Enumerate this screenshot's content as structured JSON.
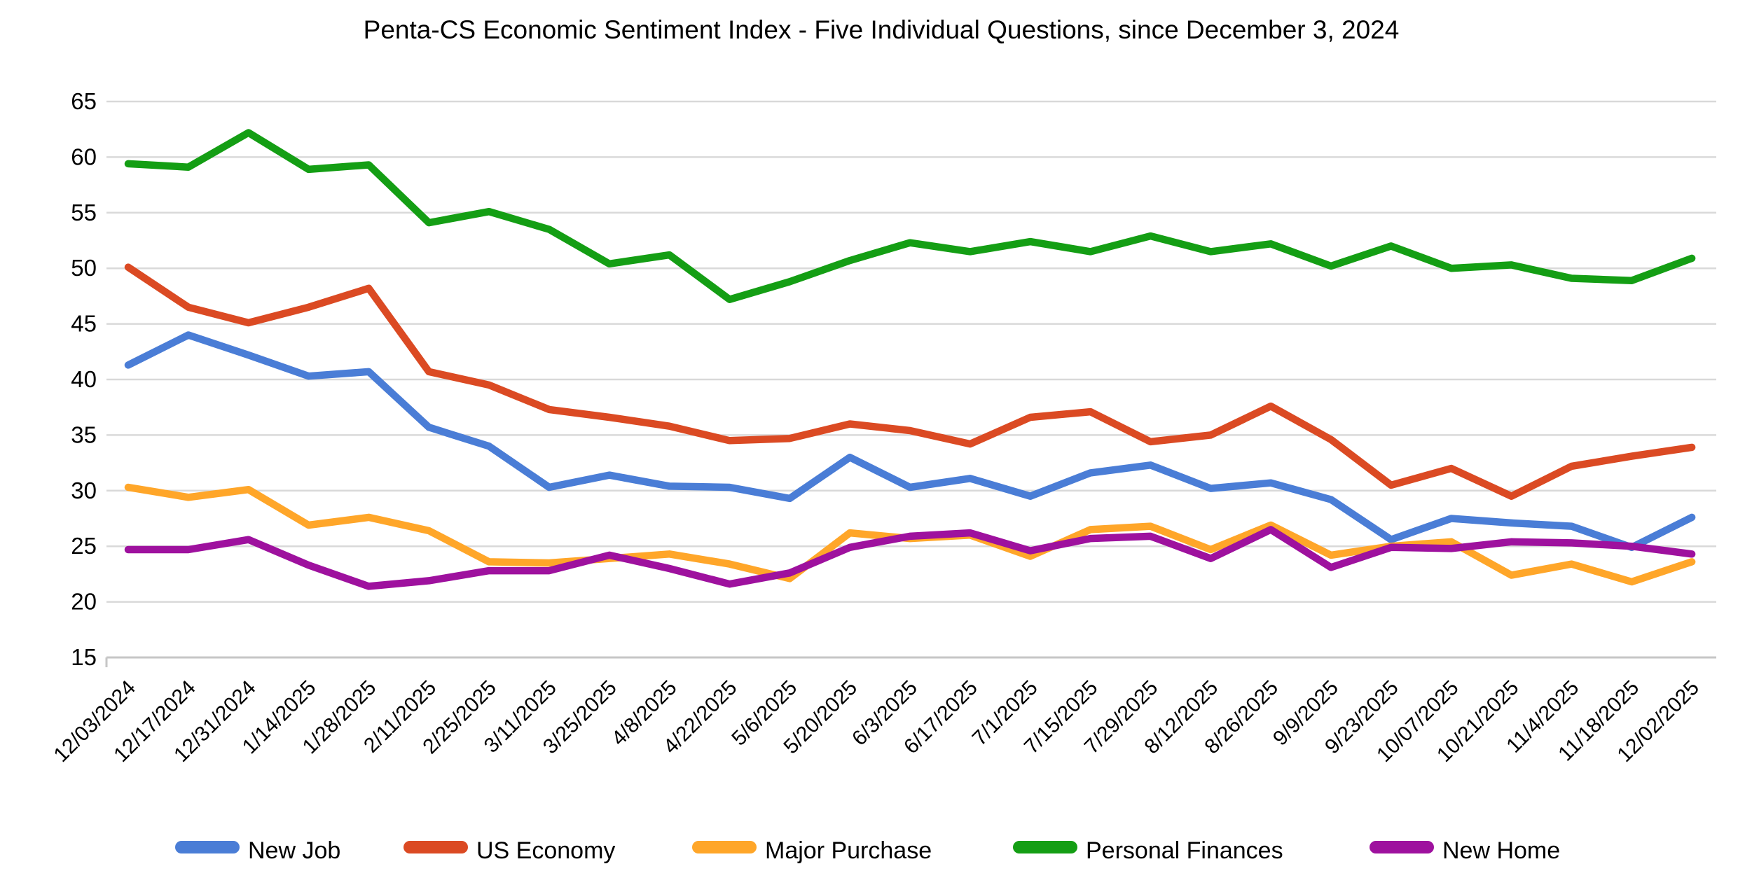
{
  "title": "Penta-CS Economic Sentiment Index - Five Individual Questions, since December 3, 2024",
  "chart_data": {
    "type": "line",
    "title": "Penta-CS Economic Sentiment Index - Five Individual Questions, since December 3, 2024",
    "xlabel": "",
    "ylabel": "",
    "grid": true,
    "legend_position": "bottom",
    "y_axis": {
      "min": 15,
      "max": 65,
      "step": 5
    },
    "x_tick_labels": [
      "12/03/2024",
      "12/17/2024",
      "12/31/2024",
      "1/14/2025",
      "1/28/2025",
      "2/11/2025",
      "2/25/2025",
      "3/11/2025",
      "3/25/2025",
      "4/8/2025",
      "4/22/2025",
      "5/6/2025",
      "5/20/2025",
      "6/3/2025",
      "6/17/2025",
      "7/1/2025",
      "7/15/2025",
      "7/29/2025",
      "8/12/2025",
      "8/26/2025",
      "9/9/2025",
      "9/23/2025",
      "10/07/2025",
      "10/21/2025",
      "11/4/2025",
      "11/18/2025",
      "12/02/2025"
    ],
    "series": [
      {
        "name": "New Job",
        "color": "#4A7DD6",
        "values": [
          41.3,
          44.0,
          42.2,
          40.3,
          40.7,
          35.7,
          34.0,
          30.3,
          31.4,
          30.4,
          30.3,
          29.3,
          33.0,
          30.3,
          31.1,
          29.5,
          31.6,
          32.3,
          30.2,
          30.7,
          29.2,
          25.6,
          27.5,
          27.1,
          26.8,
          24.9,
          27.6
        ]
      },
      {
        "name": "US Economy",
        "color": "#DB4A23",
        "values": [
          50.1,
          46.5,
          45.1,
          46.5,
          48.2,
          40.7,
          39.5,
          37.3,
          36.6,
          35.8,
          34.5,
          34.7,
          36.0,
          35.4,
          34.2,
          36.6,
          37.1,
          34.4,
          35.0,
          37.6,
          34.6,
          30.5,
          32.0,
          29.5,
          32.2,
          33.1,
          33.9
        ]
      },
      {
        "name": "Major Purchase",
        "color": "#FFA629",
        "values": [
          30.3,
          29.4,
          30.1,
          26.9,
          27.6,
          26.4,
          23.6,
          23.5,
          23.9,
          24.3,
          23.4,
          22.1,
          26.2,
          25.7,
          26.0,
          24.1,
          26.5,
          26.8,
          24.7,
          26.9,
          24.2,
          25.0,
          25.4,
          22.4,
          23.4,
          21.8,
          23.6
        ]
      },
      {
        "name": "Personal Finances",
        "color": "#149E14",
        "values": [
          59.4,
          59.1,
          62.2,
          58.9,
          59.3,
          54.1,
          55.1,
          53.5,
          50.4,
          51.2,
          47.2,
          48.8,
          50.7,
          52.3,
          51.5,
          52.4,
          51.5,
          52.9,
          51.5,
          52.2,
          50.2,
          52.0,
          50.0,
          50.3,
          49.1,
          48.9,
          50.9
        ]
      },
      {
        "name": "New Home",
        "color": "#9E119E",
        "values": [
          24.7,
          24.7,
          25.6,
          23.3,
          21.4,
          21.9,
          22.8,
          22.8,
          24.2,
          23.0,
          21.6,
          22.6,
          24.9,
          25.9,
          26.2,
          24.6,
          25.7,
          25.9,
          23.9,
          26.5,
          23.1,
          24.9,
          24.8,
          25.4,
          25.3,
          25.0,
          24.3
        ]
      }
    ],
    "style": {
      "gridline_color": "#D9D9D9",
      "axis_color": "#C6C6C6",
      "line_width": 10.5
    }
  }
}
